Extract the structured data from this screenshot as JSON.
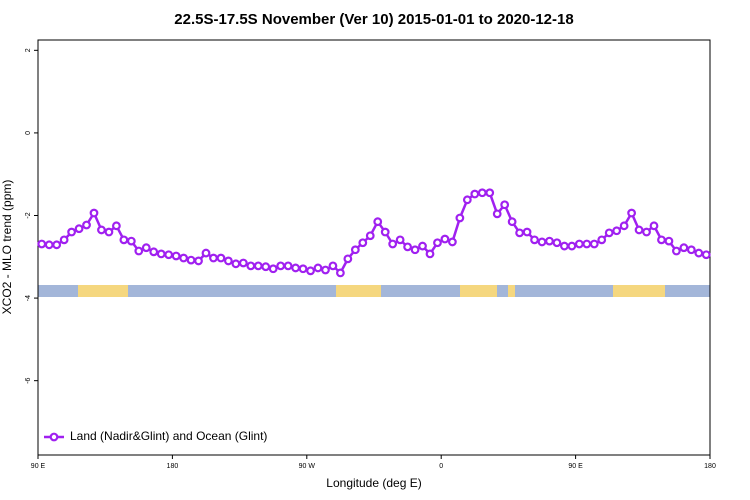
{
  "chart_data": {
    "type": "line",
    "title": "22.5S-17.5S November (Ver 10)   2015-01-01 to 2020-12-18",
    "x_label": "Longitude (deg E)",
    "y_label": "XCO2 - MLO trend (ppm)",
    "xlim": [
      90,
      540
    ],
    "ylim": [
      -7.8,
      2.25
    ],
    "xticks": [
      {
        "value": 90,
        "label": "90 E"
      },
      {
        "value": 180,
        "label": "180"
      },
      {
        "value": 270,
        "label": "90 W"
      },
      {
        "value": 360,
        "label": "0"
      },
      {
        "value": 450,
        "label": "90 E"
      },
      {
        "value": 540,
        "label": "180"
      }
    ],
    "yticks": [
      2,
      0,
      -2,
      -4,
      -6
    ],
    "legend": "bottom-left",
    "series": [
      {
        "name": "Land (Nadir&Glint) and Ocean (Glint)",
        "color": "#a020f0",
        "x": [
          92.5,
          97.5,
          102.5,
          107.5,
          112.5,
          117.5,
          122.5,
          127.5,
          132.5,
          137.5,
          142.5,
          147.5,
          152.5,
          157.5,
          162.5,
          167.5,
          172.5,
          177.5,
          182.5,
          187.5,
          192.5,
          197.5,
          202.5,
          207.5,
          212.5,
          217.5,
          222.5,
          227.5,
          232.5,
          237.5,
          242.5,
          247.5,
          252.5,
          257.5,
          262.5,
          267.5,
          272.5,
          277.5,
          282.5,
          287.5,
          292.5,
          297.5,
          302.5,
          307.5,
          312.5,
          317.5,
          322.5,
          327.5,
          332.5,
          337.5,
          342.5,
          347.5,
          352.5,
          357.5,
          362.5,
          367.5,
          372.5,
          377.5,
          382.5,
          387.5,
          392.5,
          397.5,
          402.5,
          407.5,
          412.5,
          417.5,
          422.5,
          427.5,
          432.5,
          437.5,
          442.5,
          447.5,
          452.5,
          457.5,
          462.5,
          467.5,
          472.5,
          477.5,
          482.5,
          487.5,
          492.5,
          497.5,
          502.5,
          507.5,
          512.5,
          517.5,
          522.5,
          527.5,
          532.5,
          537.5
        ],
        "values": [
          -2.69,
          -2.71,
          -2.71,
          -2.59,
          -2.4,
          -2.32,
          -2.23,
          -1.94,
          -2.35,
          -2.4,
          -2.25,
          -2.59,
          -2.62,
          -2.86,
          -2.78,
          -2.88,
          -2.93,
          -2.95,
          -2.98,
          -3.03,
          -3.08,
          -3.1,
          -2.91,
          -3.03,
          -3.03,
          -3.1,
          -3.17,
          -3.15,
          -3.22,
          -3.22,
          -3.24,
          -3.29,
          -3.22,
          -3.22,
          -3.27,
          -3.29,
          -3.34,
          -3.27,
          -3.32,
          -3.22,
          -3.39,
          -3.05,
          -2.83,
          -2.66,
          -2.49,
          -2.15,
          -2.4,
          -2.69,
          -2.59,
          -2.76,
          -2.83,
          -2.74,
          -2.93,
          -2.66,
          -2.57,
          -2.64,
          -2.06,
          -1.62,
          -1.48,
          -1.45,
          -1.45,
          -1.96,
          -1.74,
          -2.15,
          -2.42,
          -2.4,
          -2.59,
          -2.64,
          -2.62,
          -2.66,
          -2.74,
          -2.74,
          -2.69,
          -2.69,
          -2.69,
          -2.59,
          -2.42,
          -2.37,
          -2.25,
          -1.94,
          -2.35,
          -2.4,
          -2.25,
          -2.59,
          -2.62,
          -2.86,
          -2.78,
          -2.83,
          -2.91,
          -2.95
        ]
      }
    ]
  }
}
